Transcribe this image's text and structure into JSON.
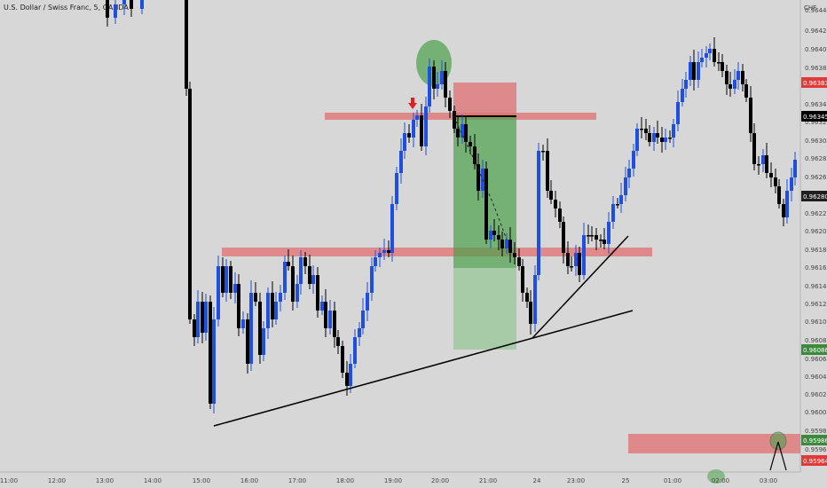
{
  "header": {
    "symbol_title": "U.S. Dollar / Swiss Franc, 5, OANDA",
    "currency": "CHF"
  },
  "price_axis": {
    "ticks": [
      "0.96440",
      "0.96420",
      "0.96400",
      "0.96380",
      "0.96360",
      "0.96340",
      "0.96320",
      "0.96300",
      "0.96280",
      "0.96260",
      "0.96240",
      "0.96220",
      "0.96200",
      "0.96180",
      "0.96160",
      "0.96140",
      "0.96120",
      "0.96100",
      "0.96080",
      "0.96060",
      "0.96040",
      "0.96020",
      "0.96000",
      "0.95980",
      "0.95960"
    ],
    "tags": [
      {
        "label": "0.96383",
        "color": "#e03a3a"
      },
      {
        "label": "0.96345",
        "color": "#000000"
      },
      {
        "label": "0.96280",
        "color": "#1f1f1f"
      },
      {
        "label": "0.96086",
        "color": "#3c8a3c"
      },
      {
        "label": "0.95986",
        "color": "#3c8a3c"
      },
      {
        "label": "0.95964",
        "color": "#e03a3a"
      }
    ]
  },
  "time_axis": {
    "ticks": [
      "11:00",
      "12:00",
      "13:00",
      "14:00",
      "15:00",
      "16:00",
      "17:00",
      "18:00",
      "19:00",
      "20:00",
      "21:00",
      "24",
      "23:00",
      "25",
      "01:00",
      "02:00",
      "03:00"
    ]
  },
  "colors": {
    "up": "#1f4fe0",
    "down": "#000000",
    "zone": "#e07070",
    "profit": "#4ca04c",
    "circle": "#4ca04c",
    "signal_arrow": "#e02020"
  },
  "chart_data": {
    "type": "candlestick",
    "symbol": "U.S. Dollar / Swiss Franc",
    "timeframe": "5",
    "source": "OANDA",
    "ylim": [
      0.95955,
      0.9646
    ],
    "annotations": {
      "resistance_zone": [
        0.96335,
        0.96343
      ],
      "support_zone": [
        0.9619,
        0.962
      ],
      "lower_zone": [
        0.95965,
        0.95987
      ],
      "short_position": {
        "entry": 0.96345,
        "stop": 0.96383,
        "target": 0.96086
      }
    }
  }
}
